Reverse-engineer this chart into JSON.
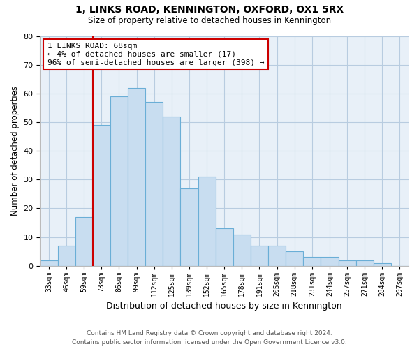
{
  "title": "1, LINKS ROAD, KENNINGTON, OXFORD, OX1 5RX",
  "subtitle": "Size of property relative to detached houses in Kennington",
  "xlabel": "Distribution of detached houses by size in Kennington",
  "ylabel": "Number of detached properties",
  "bar_color": "#c8ddf0",
  "bar_edge_color": "#6aaed6",
  "plot_bg_color": "#e8f0f8",
  "background_color": "#ffffff",
  "grid_color": "#b8cce0",
  "annotation_box_color": "#cc0000",
  "vline_color": "#cc0000",
  "bin_labels": [
    "33sqm",
    "46sqm",
    "59sqm",
    "73sqm",
    "86sqm",
    "99sqm",
    "112sqm",
    "125sqm",
    "139sqm",
    "152sqm",
    "165sqm",
    "178sqm",
    "191sqm",
    "205sqm",
    "218sqm",
    "231sqm",
    "244sqm",
    "257sqm",
    "271sqm",
    "284sqm",
    "297sqm"
  ],
  "bar_heights": [
    2,
    7,
    17,
    49,
    59,
    62,
    57,
    52,
    27,
    31,
    13,
    11,
    7,
    7,
    5,
    3,
    3,
    2,
    2,
    1,
    0
  ],
  "vline_position": 3,
  "ylim": [
    0,
    80
  ],
  "yticks": [
    0,
    10,
    20,
    30,
    40,
    50,
    60,
    70,
    80
  ],
  "annotation_text": "1 LINKS ROAD: 68sqm\n← 4% of detached houses are smaller (17)\n96% of semi-detached houses are larger (398) →",
  "footer_line1": "Contains HM Land Registry data © Crown copyright and database right 2024.",
  "footer_line2": "Contains public sector information licensed under the Open Government Licence v3.0."
}
